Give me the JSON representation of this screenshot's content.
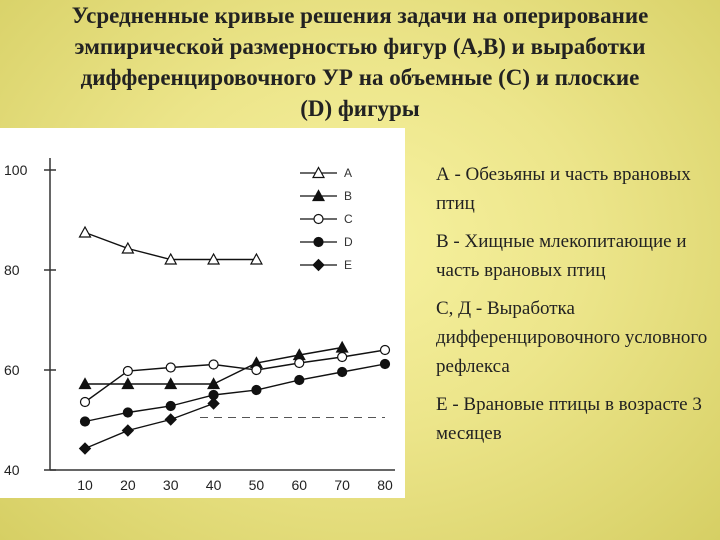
{
  "title_lines": [
    "Усредненные кривые решения задачи на оперирование",
    "эмпирической размерностью фигур (А,В) и выработки",
    "дифференцировочного УР на объемные (С) и плоские",
    "(D) фигуры"
  ],
  "descriptions": [
    "А - Обезьяны и часть врановых птиц",
    "В - Хищные млекопитающие и часть врановых птиц",
    "С, Д - Выработка дифференцировочного условного рефлекса",
    "Е - Врановые птицы в возрасте 3 месяцев"
  ],
  "chart_data": {
    "type": "line",
    "x": [
      10,
      20,
      30,
      40,
      50,
      60,
      70,
      80
    ],
    "xlim": [
      10,
      80
    ],
    "ylim": [
      40,
      100
    ],
    "x_ticks": [
      "10",
      "20",
      "30",
      "40",
      "50",
      "60",
      "70",
      "80"
    ],
    "y_ticks": [
      "100",
      "80",
      "60",
      "40"
    ],
    "y_tick_values": [
      100,
      80,
      60,
      40
    ],
    "series": [
      {
        "name": "A",
        "marker": "open-triangle",
        "x": [
          10,
          20,
          30,
          40,
          50
        ],
        "values": [
          87.5,
          84.3,
          82.1,
          82.1,
          82.1
        ]
      },
      {
        "name": "B",
        "marker": "filled-triangle",
        "x": [
          10,
          20,
          30,
          40,
          50,
          60,
          70
        ],
        "values": [
          57.2,
          57.2,
          57.2,
          57.2,
          61.4,
          63.0,
          64.5
        ]
      },
      {
        "name": "C",
        "marker": "open-circle",
        "x": [
          10,
          20,
          30,
          40,
          50,
          60,
          70,
          80
        ],
        "values": [
          53.6,
          59.8,
          60.5,
          61.1,
          60.0,
          61.4,
          62.6,
          64.0
        ]
      },
      {
        "name": "D",
        "marker": "filled-circle",
        "x": [
          10,
          20,
          30,
          40,
          50,
          60,
          70,
          80
        ],
        "values": [
          49.7,
          51.5,
          52.8,
          55.0,
          56.0,
          58.0,
          59.6,
          61.2
        ]
      },
      {
        "name": "E",
        "marker": "filled-diamond",
        "x": [
          10,
          20,
          30,
          40
        ],
        "values": [
          44.3,
          47.9,
          50.1,
          53.3
        ]
      }
    ],
    "title": "",
    "xlabel": "",
    "ylabel": "",
    "legend": "top-right"
  }
}
